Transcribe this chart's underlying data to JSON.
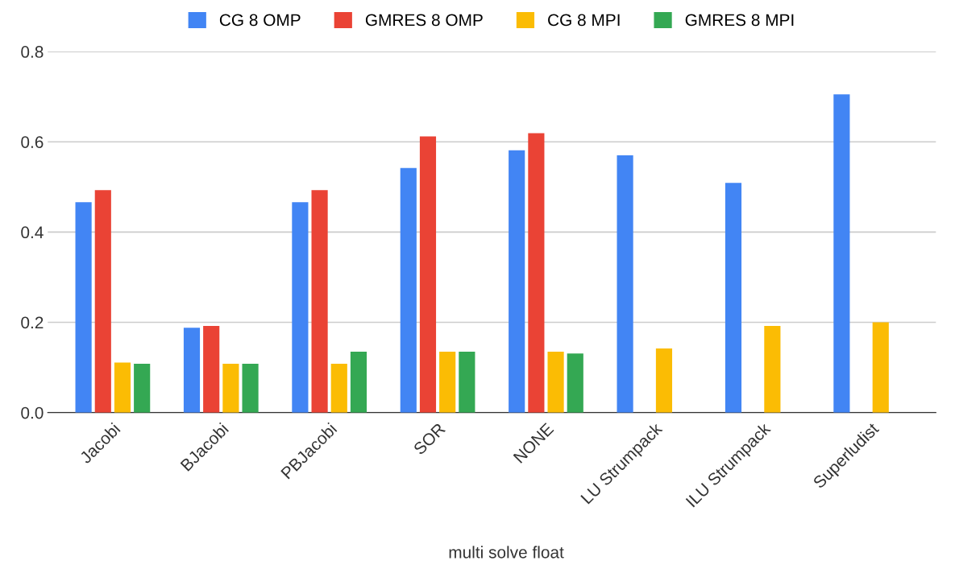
{
  "chart_data": {
    "type": "bar",
    "xlabel": "multi solve float",
    "categories": [
      "Jacobi",
      "BJacobi",
      "PBJacobi",
      "SOR",
      "NONE",
      "LU Strumpack",
      "ILU Strumpack",
      "Superludist"
    ],
    "series": [
      {
        "name": "CG 8 OMP",
        "color": "#4285f4",
        "values": [
          0.466,
          0.188,
          0.466,
          0.542,
          0.581,
          0.57,
          0.509,
          0.705
        ]
      },
      {
        "name": "GMRES 8 OMP",
        "color": "#ea4335",
        "values": [
          0.493,
          0.192,
          0.493,
          0.612,
          0.619,
          null,
          null,
          null
        ]
      },
      {
        "name": "CG 8 MPI",
        "color": "#fbbc04",
        "values": [
          0.111,
          0.108,
          0.108,
          0.135,
          0.135,
          0.142,
          0.192,
          0.2
        ]
      },
      {
        "name": "GMRES 8 MPI",
        "color": "#34a853",
        "values": [
          0.108,
          0.108,
          0.135,
          0.135,
          0.131,
          null,
          null,
          null
        ]
      }
    ],
    "ylim": [
      0,
      0.8
    ],
    "yticks": [
      {
        "value": 0,
        "label": "0.0"
      },
      {
        "value": 0.2,
        "label": "0.2"
      },
      {
        "value": 0.4,
        "label": "0.4"
      },
      {
        "value": 0.6,
        "label": "0.6"
      },
      {
        "value": 0.8,
        "label": "0.8"
      }
    ],
    "grid": "y",
    "legend": "top"
  }
}
